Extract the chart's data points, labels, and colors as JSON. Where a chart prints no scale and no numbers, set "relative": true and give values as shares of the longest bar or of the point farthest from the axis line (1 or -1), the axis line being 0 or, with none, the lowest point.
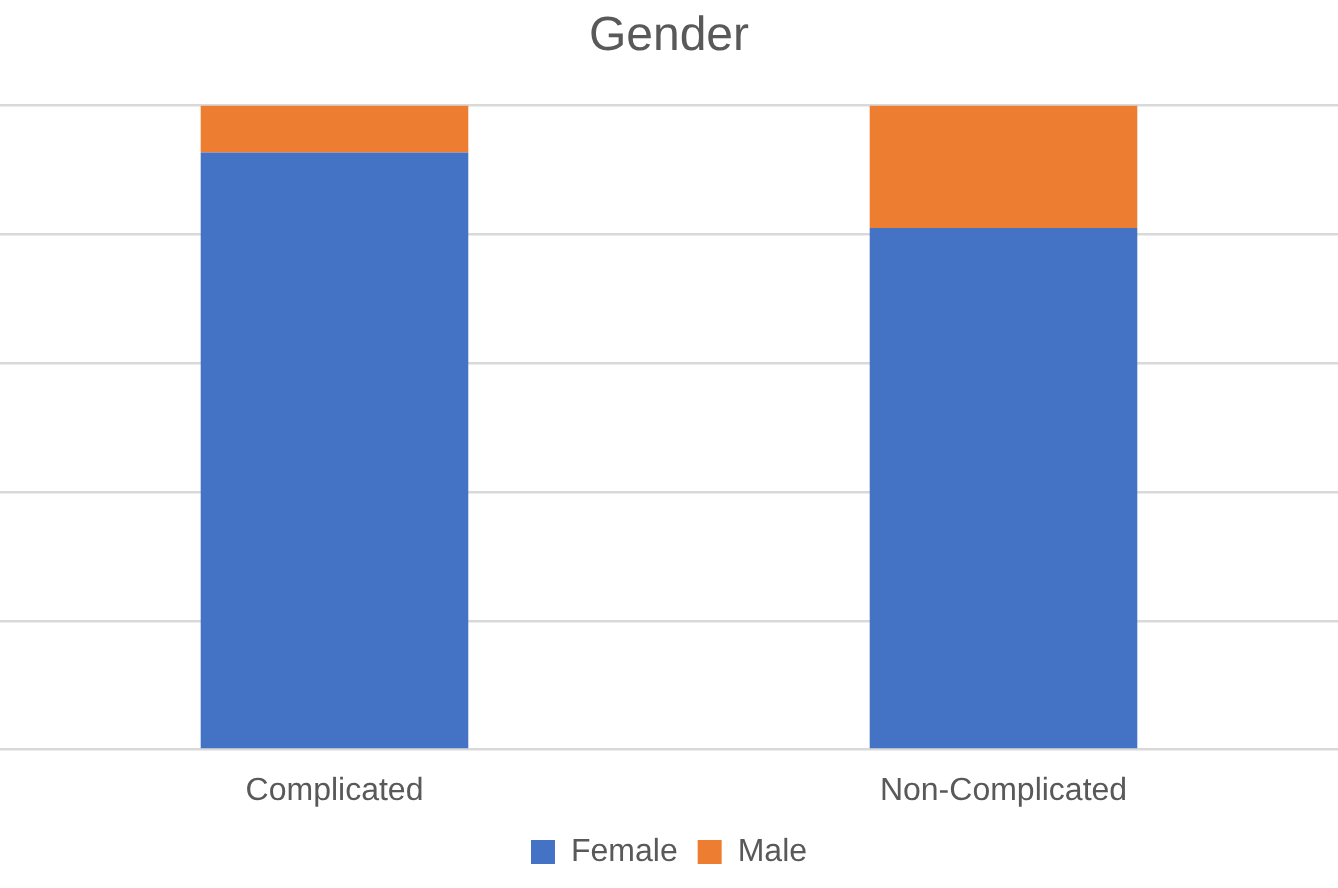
{
  "chart_data": {
    "type": "bar",
    "title": "Gender",
    "categories": [
      "Complicated",
      "Non-Complicated"
    ],
    "stacked": true,
    "relative": true,
    "grid": "y",
    "legend": "bottom",
    "series": [
      {
        "name": "Female",
        "color": "#4472c4",
        "values": [
          0.927,
          0.81
        ]
      },
      {
        "name": "Male",
        "color": "#ed7d31",
        "values": [
          0.073,
          0.19
        ]
      }
    ]
  }
}
